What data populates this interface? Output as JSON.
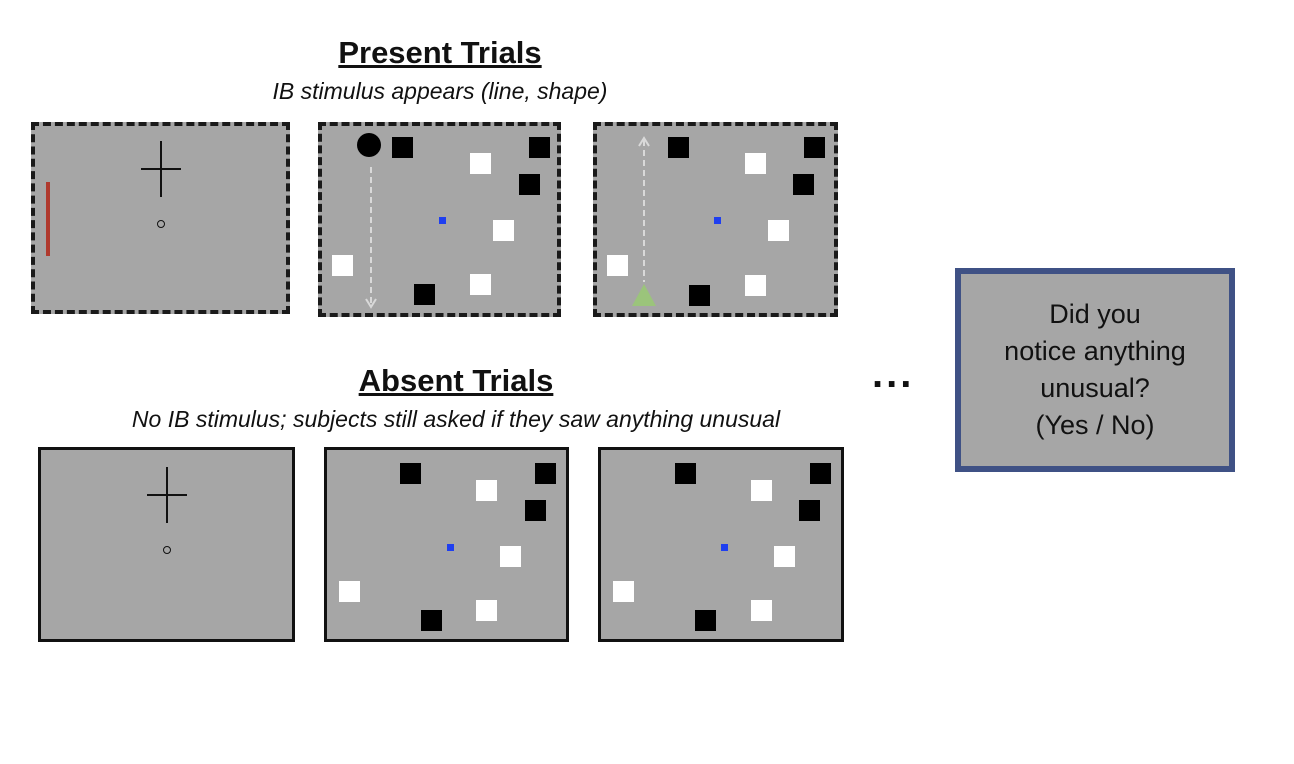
{
  "present": {
    "title": "Present Trials",
    "subtitle": "IB stimulus appears (line, shape)"
  },
  "absent": {
    "title": "Absent Trials",
    "subtitle": "No IB stimulus; subjects still asked if they saw anything unusual"
  },
  "ellipsis": "...",
  "question": {
    "lines": [
      "Did you",
      "notice anything",
      "unusual?",
      "(Yes / No)"
    ]
  },
  "colors": {
    "panel_gray": "#a6a6a6",
    "ib_line": "#b03a2e",
    "ib_triangle": "#9bc47b",
    "fixation_dot": "#1f3ff0",
    "question_border": "#3f5185",
    "motion_path": "#d9d9d9"
  }
}
